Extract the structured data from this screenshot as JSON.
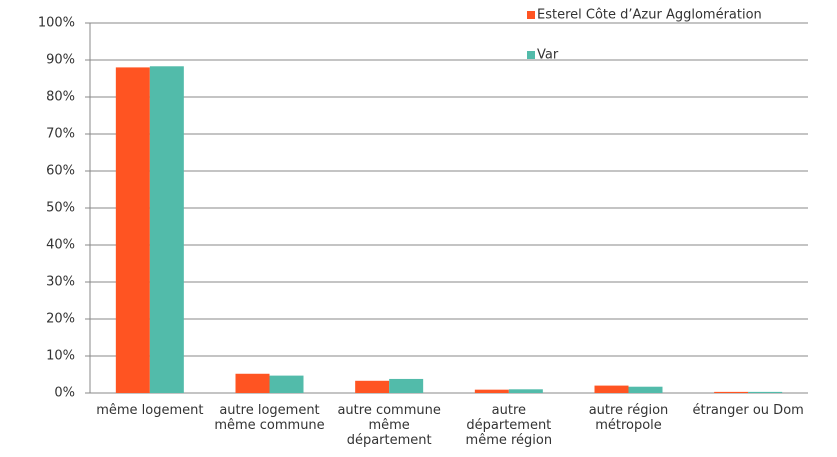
{
  "chart_data": {
    "type": "bar",
    "categories": [
      "même logement",
      "autre logement même commune",
      "autre commune même département",
      "autre département même région",
      "autre région métropole",
      "étranger ou Dom"
    ],
    "series": [
      {
        "name": "Esterel Côte d’Azur Agglomération",
        "color": "#ff5422",
        "values": [
          88,
          5.2,
          3.3,
          0.9,
          2.0,
          0.3
        ]
      },
      {
        "name": "Var",
        "color": "#52bbaa",
        "values": [
          88.3,
          4.7,
          3.8,
          1.0,
          1.7,
          0.3
        ]
      }
    ],
    "ylim": [
      0,
      100
    ],
    "yticks": [
      {
        "value": 0,
        "label": "0%"
      },
      {
        "value": 10,
        "label": "10%"
      },
      {
        "value": 20,
        "label": "20%"
      },
      {
        "value": 30,
        "label": "30%"
      },
      {
        "value": 40,
        "label": "40%"
      },
      {
        "value": 50,
        "label": "50%"
      },
      {
        "value": 60,
        "label": "60%"
      },
      {
        "value": 70,
        "label": "70%"
      },
      {
        "value": 80,
        "label": "80%"
      },
      {
        "value": 90,
        "label": "90%"
      },
      {
        "value": 100,
        "label": "100%"
      }
    ],
    "grid": true,
    "legend": "top-right"
  }
}
